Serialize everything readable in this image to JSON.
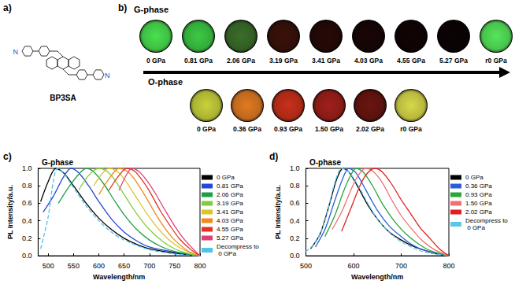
{
  "structure": {
    "panel": "a)",
    "name": "BP3SA",
    "atom_label": "N"
  },
  "photos": {
    "panel": "b)",
    "rows": [
      {
        "phase": "G-phase",
        "items": [
          {
            "label": "0 GPa",
            "color": "#49e04f"
          },
          {
            "label": "0.81 GPa",
            "color": "#3cc944"
          },
          {
            "label": "2.06 GPa",
            "color": "#3b6e2a"
          },
          {
            "label": "3.19 GPa",
            "color": "#3a120a"
          },
          {
            "label": "3.41 GPa",
            "color": "#260a07"
          },
          {
            "label": "4.03 GPa",
            "color": "#180606"
          },
          {
            "label": "4.55 GPa",
            "color": "#110404"
          },
          {
            "label": "5.27 GPa",
            "color": "#0c0303"
          },
          {
            "label": "r0 GPa",
            "color": "#55e65a"
          }
        ]
      },
      {
        "phase": "O-phase",
        "items": [
          {
            "label": "0 GPa",
            "color": "#c8d23a"
          },
          {
            "label": "0.36 GPa",
            "color": "#e07a22"
          },
          {
            "label": "0.93 GPa",
            "color": "#c8301a"
          },
          {
            "label": "1.50 GPa",
            "color": "#a0201a"
          },
          {
            "label": "2.02 GPa",
            "color": "#6a1510"
          },
          {
            "label": "r0 GPa",
            "color": "#d8d84a"
          }
        ]
      }
    ]
  },
  "chart_data": [
    {
      "panel": "c)",
      "type": "line",
      "title": "G-phase",
      "x_label": "Wavelength/nm",
      "y_label": "PL Intensity/a.u.",
      "xlim": [
        480,
        800
      ],
      "xticks": [
        500,
        550,
        600,
        650,
        700,
        750,
        800
      ],
      "ylim": [
        0,
        1
      ],
      "yticks": [
        {
          "value": 0,
          "label": "0.0"
        },
        0.2,
        0.4,
        0.6,
        0.8,
        {
          "value": 1,
          "label": "1.0"
        }
      ],
      "legend": "right",
      "grid": false,
      "series": [
        {
          "name": "0 GPa",
          "color": "#000000",
          "line_style": "solid",
          "x": [
            485,
            500,
            515,
            530,
            550,
            575,
            600,
            625,
            650,
            675,
            700,
            750,
            800
          ],
          "values": [
            0.62,
            0.85,
            1.0,
            0.95,
            0.8,
            0.6,
            0.43,
            0.3,
            0.2,
            0.13,
            0.08,
            0.03,
            0.0
          ]
        },
        {
          "name": "0.81 GPa",
          "color": "#2347d8",
          "line_style": "solid",
          "x": [
            490,
            510,
            530,
            545,
            560,
            580,
            600,
            625,
            650,
            675,
            700,
            750,
            800
          ],
          "values": [
            0.5,
            0.68,
            0.9,
            1.0,
            0.95,
            0.8,
            0.62,
            0.42,
            0.27,
            0.17,
            0.1,
            0.04,
            0.0
          ]
        },
        {
          "name": "2.06 GPa",
          "color": "#1f9e48",
          "line_style": "solid",
          "x": [
            520,
            540,
            560,
            575,
            590,
            610,
            630,
            650,
            675,
            700,
            725,
            750,
            800
          ],
          "values": [
            0.6,
            0.78,
            0.93,
            1.0,
            0.96,
            0.82,
            0.64,
            0.47,
            0.3,
            0.18,
            0.1,
            0.05,
            0.0
          ]
        },
        {
          "name": "3.19 GPa",
          "color": "#7fcf3a",
          "line_style": "solid",
          "x": [
            560,
            580,
            600,
            615,
            630,
            650,
            675,
            700,
            725,
            750,
            775,
            800
          ],
          "values": [
            0.75,
            0.92,
            1.0,
            0.97,
            0.88,
            0.7,
            0.48,
            0.3,
            0.17,
            0.08,
            0.03,
            0.0
          ]
        },
        {
          "name": "3.41 GPa",
          "color": "#d9c72a",
          "line_style": "solid",
          "x": [
            590,
            605,
            620,
            635,
            650,
            675,
            700,
            725,
            750,
            775,
            800
          ],
          "values": [
            0.8,
            0.93,
            1.0,
            0.97,
            0.88,
            0.66,
            0.44,
            0.26,
            0.13,
            0.05,
            0.0
          ]
        },
        {
          "name": "4.03 GPa",
          "color": "#f08a1c",
          "line_style": "solid",
          "x": [
            600,
            620,
            640,
            655,
            670,
            690,
            710,
            730,
            750,
            775,
            800
          ],
          "values": [
            0.7,
            0.88,
            1.0,
            0.97,
            0.88,
            0.7,
            0.5,
            0.32,
            0.18,
            0.06,
            0.0
          ]
        },
        {
          "name": "4.55 GPa",
          "color": "#e8321e",
          "line_style": "solid",
          "x": [
            620,
            640,
            655,
            670,
            685,
            700,
            720,
            740,
            760,
            780,
            800
          ],
          "values": [
            0.75,
            0.92,
            1.0,
            0.97,
            0.87,
            0.74,
            0.53,
            0.35,
            0.19,
            0.08,
            0.0
          ]
        },
        {
          "name": "5.27 GPa",
          "color": "#e0407a",
          "line_style": "solid",
          "x": [
            640,
            655,
            665,
            680,
            695,
            710,
            730,
            750,
            770,
            800
          ],
          "values": [
            0.75,
            0.93,
            1.0,
            0.96,
            0.86,
            0.73,
            0.53,
            0.34,
            0.18,
            0.0
          ]
        },
        {
          "name": "Decompress to 0 GPa",
          "color": "#4fc3e8",
          "line_style": "dashed",
          "x": [
            485,
            500,
            510,
            518,
            530,
            550,
            575,
            600,
            625,
            650,
            700,
            750,
            800
          ],
          "values": [
            0.08,
            0.45,
            0.85,
            1.0,
            0.95,
            0.78,
            0.57,
            0.4,
            0.27,
            0.18,
            0.07,
            0.02,
            0.0
          ]
        }
      ]
    },
    {
      "panel": "d)",
      "type": "line",
      "title": "O-phase",
      "x_label": "Wavelength/nm",
      "y_label": "PL Intensity/a.u.",
      "xlim": [
        500,
        800
      ],
      "xticks": [
        500,
        600,
        700,
        800
      ],
      "ylim": [
        0,
        1
      ],
      "yticks": [
        {
          "value": 0,
          "label": "0.0"
        },
        0.2,
        0.4,
        0.6,
        0.8,
        {
          "value": 1,
          "label": "1.0"
        }
      ],
      "legend": "right",
      "grid": false,
      "series": [
        {
          "name": "0 GPa",
          "color": "#000000",
          "line_style": "solid",
          "x": [
            510,
            530,
            550,
            565,
            578,
            590,
            610,
            630,
            650,
            675,
            700,
            725,
            750,
            775,
            800
          ],
          "values": [
            0.08,
            0.25,
            0.6,
            0.88,
            1.0,
            0.96,
            0.78,
            0.58,
            0.42,
            0.27,
            0.18,
            0.11,
            0.06,
            0.02,
            0.0
          ]
        },
        {
          "name": "0.36 GPa",
          "color": "#2b5fd9",
          "line_style": "solid",
          "x": [
            520,
            540,
            560,
            575,
            590,
            605,
            625,
            650,
            675,
            700,
            725,
            750,
            800
          ],
          "values": [
            0.1,
            0.3,
            0.62,
            0.85,
            1.0,
            0.95,
            0.76,
            0.52,
            0.34,
            0.22,
            0.12,
            0.06,
            0.0
          ]
        },
        {
          "name": "0.93 GPa",
          "color": "#2aa63a",
          "line_style": "solid",
          "x": [
            540,
            560,
            580,
            595,
            605,
            620,
            640,
            660,
            685,
            710,
            735,
            760,
            800
          ],
          "values": [
            0.22,
            0.45,
            0.75,
            0.93,
            1.0,
            0.96,
            0.8,
            0.6,
            0.4,
            0.25,
            0.14,
            0.06,
            0.0
          ]
        },
        {
          "name": "1.50 GPa",
          "color": "#f07070",
          "line_style": "solid",
          "x": [
            555,
            575,
            595,
            610,
            625,
            640,
            660,
            680,
            700,
            720,
            745,
            770,
            800
          ],
          "values": [
            0.3,
            0.5,
            0.76,
            0.92,
            1.0,
            0.97,
            0.84,
            0.64,
            0.46,
            0.32,
            0.17,
            0.07,
            0.0
          ]
        },
        {
          "name": "2.02 GPa",
          "color": "#e02020",
          "line_style": "solid",
          "x": [
            575,
            595,
            615,
            630,
            645,
            660,
            680,
            700,
            720,
            740,
            760,
            780,
            800
          ],
          "values": [
            0.28,
            0.55,
            0.82,
            0.95,
            1.0,
            0.96,
            0.82,
            0.64,
            0.48,
            0.32,
            0.2,
            0.08,
            0.0
          ]
        },
        {
          "name": "Decompress to 0 GPa",
          "color": "#5bc8e8",
          "line_style": "dashed",
          "x": [
            500,
            520,
            540,
            560,
            575,
            590,
            610,
            630,
            650,
            675,
            700,
            725,
            750,
            800
          ],
          "values": [
            0.05,
            0.15,
            0.4,
            0.82,
            1.0,
            0.96,
            0.8,
            0.6,
            0.42,
            0.27,
            0.16,
            0.09,
            0.04,
            0.0
          ]
        }
      ]
    }
  ]
}
